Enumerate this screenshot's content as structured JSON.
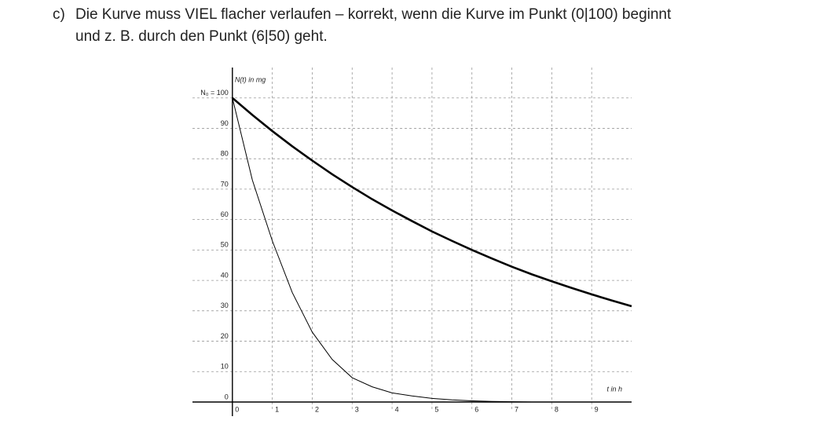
{
  "text": {
    "label": "c)",
    "lines": [
      "Die Kurve muss VIEL flacher verlaufen – korrekt, wenn die Kurve im Punkt (0|100) beginnt",
      "und z. B. durch den Punkt (6|50) geht."
    ]
  },
  "chart_data": {
    "type": "line",
    "ylabel": "N(t) in mg",
    "xlabel": "t in h",
    "x": [
      0,
      0.5,
      1,
      1.5,
      2,
      2.5,
      3,
      3.5,
      4,
      4.5,
      5,
      5.5,
      6,
      6.5,
      7,
      7.5,
      8,
      8.5,
      9,
      9.5,
      10
    ],
    "series": [
      {
        "color": "#000000",
        "width": 2.6,
        "values": [
          100,
          94.4,
          89.1,
          84.1,
          79.4,
          74.9,
          70.7,
          66.7,
          63,
          59.5,
          56.1,
          53,
          50,
          47.2,
          44.5,
          42,
          39.7,
          37.5,
          35.4,
          33.4,
          31.5
        ]
      },
      {
        "color": "#000000",
        "width": 1,
        "values": [
          100,
          73,
          53,
          36,
          23,
          14,
          8,
          5,
          3,
          2,
          1.2,
          0.7,
          0.4,
          0.2,
          0.1,
          0,
          0,
          0,
          0,
          0,
          0
        ]
      }
    ],
    "xlim": [
      -1,
      10
    ],
    "ylim": [
      0,
      110
    ],
    "xticks": [
      0,
      1,
      2,
      3,
      4,
      5,
      6,
      7,
      8,
      9
    ],
    "yticks": [
      0,
      10,
      20,
      30,
      40,
      50,
      60,
      70,
      80,
      90,
      {
        "value": 100,
        "label": "N₀ = 100"
      }
    ],
    "grid": true
  }
}
